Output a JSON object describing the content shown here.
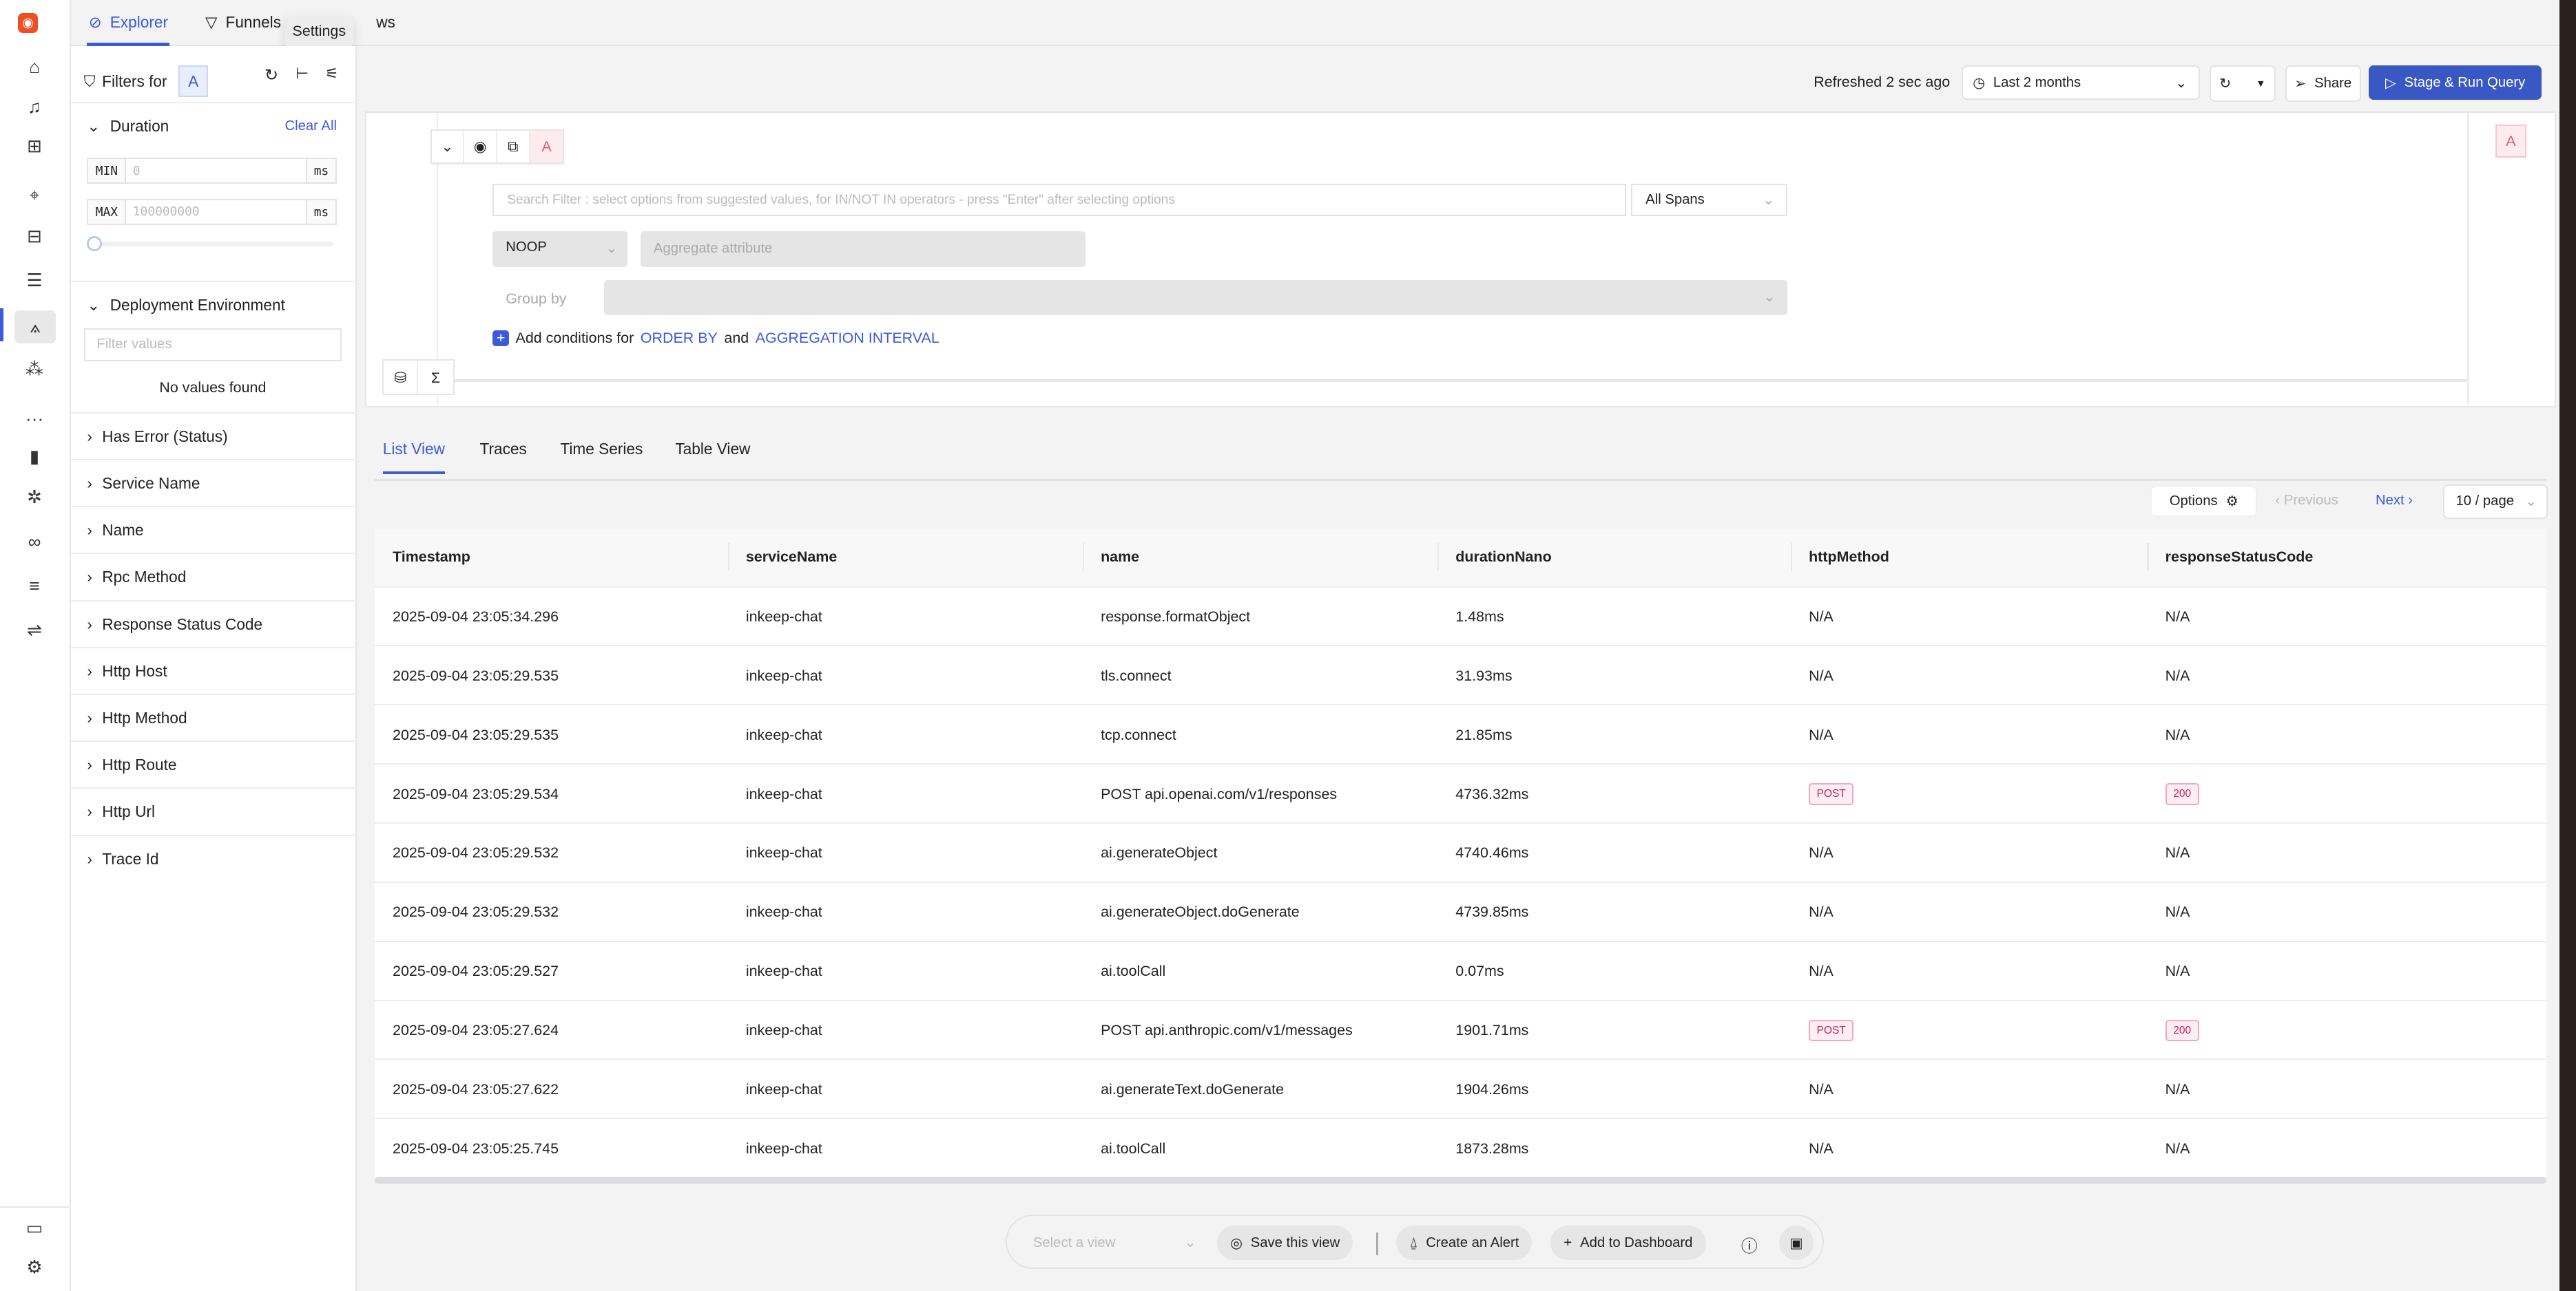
{
  "colors": {
    "accent": "#3b5bdb",
    "primary_button": "#3a58c4",
    "pill_text": "#c2255c",
    "query_badge": "#e05a6f"
  },
  "nav": {
    "icons": [
      "logo-icon",
      "home-icon",
      "alert-bell-icon",
      "dashboard-grid-icon",
      "cursor-click-icon",
      "inbox-icon",
      "scroll-logs-icon",
      "traces-compass-icon",
      "clusters-icon",
      "more-icon",
      "bar-chart-icon",
      "bug-icon",
      "binoculars-icon",
      "list-icon",
      "route-icon",
      "chat-icon",
      "settings-gear-icon"
    ]
  },
  "top_tabs": [
    {
      "label": "Explorer",
      "active": true
    },
    {
      "label": "Funnels"
    },
    {
      "label": "ws"
    }
  ],
  "tooltip": "Settings",
  "filters": {
    "title": "Filters for",
    "query": "A",
    "duration": {
      "label": "Duration",
      "clear": "Clear All",
      "min_label": "MIN",
      "min_placeholder": "0",
      "max_label": "MAX",
      "max_placeholder": "100000000",
      "unit": "ms"
    },
    "deployment": {
      "label": "Deployment Environment",
      "placeholder": "Filter values",
      "empty": "No values found"
    },
    "sections": [
      "Has Error (Status)",
      "Service Name",
      "Name",
      "Rpc Method",
      "Response Status Code",
      "Http Host",
      "Http Method",
      "Http Route",
      "Http Url",
      "Trace Id"
    ]
  },
  "toolbar": {
    "refreshed": "Refreshed 2 sec ago",
    "time_range": "Last 2 months",
    "share": "Share",
    "run": "Stage & Run Query"
  },
  "query": {
    "name": "A",
    "search_placeholder": "Search Filter : select options from suggested values, for IN/NOT IN operators - press \"Enter\" after selecting options",
    "spans": "All Spans",
    "aggregate_op": "NOOP",
    "aggregate_placeholder": "Aggregate attribute",
    "group_by": "Group by",
    "add_conditions": "Add conditions for",
    "order_by": "ORDER BY",
    "and": "and",
    "agg_interval": "AGGREGATION INTERVAL"
  },
  "view_tabs": [
    {
      "label": "List View",
      "active": true
    },
    {
      "label": "Traces"
    },
    {
      "label": "Time Series"
    },
    {
      "label": "Table View"
    }
  ],
  "pager": {
    "options": "Options",
    "previous": "Previous",
    "next": "Next",
    "page_size": "10 / page"
  },
  "table": {
    "columns": [
      "Timestamp",
      "serviceName",
      "name",
      "durationNano",
      "httpMethod",
      "responseStatusCode"
    ],
    "rows": [
      [
        "2025-09-04 23:05:34.296",
        "inkeep-chat",
        "response.formatObject",
        "1.48ms",
        "N/A",
        "N/A"
      ],
      [
        "2025-09-04 23:05:29.535",
        "inkeep-chat",
        "tls.connect",
        "31.93ms",
        "N/A",
        "N/A"
      ],
      [
        "2025-09-04 23:05:29.535",
        "inkeep-chat",
        "tcp.connect",
        "21.85ms",
        "N/A",
        "N/A"
      ],
      [
        "2025-09-04 23:05:29.534",
        "inkeep-chat",
        "POST api.openai.com/v1/responses",
        "4736.32ms",
        "POST",
        "200"
      ],
      [
        "2025-09-04 23:05:29.532",
        "inkeep-chat",
        "ai.generateObject",
        "4740.46ms",
        "N/A",
        "N/A"
      ],
      [
        "2025-09-04 23:05:29.532",
        "inkeep-chat",
        "ai.generateObject.doGenerate",
        "4739.85ms",
        "N/A",
        "N/A"
      ],
      [
        "2025-09-04 23:05:29.527",
        "inkeep-chat",
        "ai.toolCall",
        "0.07ms",
        "N/A",
        "N/A"
      ],
      [
        "2025-09-04 23:05:27.624",
        "inkeep-chat",
        "POST api.anthropic.com/v1/messages",
        "1901.71ms",
        "POST",
        "200"
      ],
      [
        "2025-09-04 23:05:27.622",
        "inkeep-chat",
        "ai.generateText.doGenerate",
        "1904.26ms",
        "N/A",
        "N/A"
      ],
      [
        "2025-09-04 23:05:25.745",
        "inkeep-chat",
        "ai.toolCall",
        "1873.28ms",
        "N/A",
        "N/A"
      ]
    ]
  },
  "bottom": {
    "select_placeholder": "Select a view",
    "save": "Save this view",
    "alert": "Create an Alert",
    "dashboard": "Add to Dashboard"
  }
}
